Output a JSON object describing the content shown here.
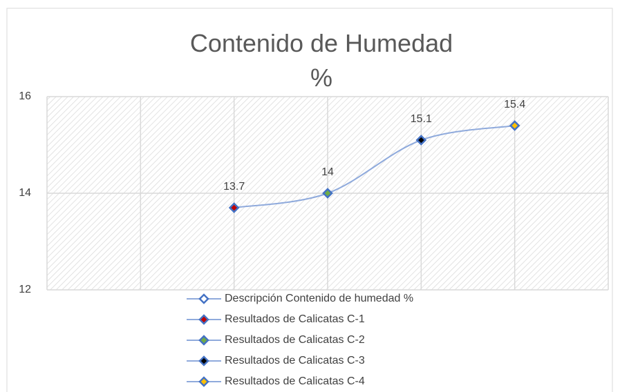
{
  "chart_data": {
    "type": "scatter",
    "title": "Contenido de Humedad %",
    "xlim": [
      0,
      6
    ],
    "xticks": [
      0,
      1,
      2,
      3,
      4,
      5,
      6
    ],
    "ylim": [
      12,
      16
    ],
    "yticks": [
      12,
      14,
      16
    ],
    "grid": true,
    "legend": "bottom",
    "series": [
      {
        "name": "Descripción Contenido de humedad %",
        "color": "#ffffff",
        "line_color": "#8faadc",
        "x": [
          2,
          3,
          4,
          5
        ],
        "values": [
          13.7,
          14,
          15.1,
          15.4
        ]
      },
      {
        "name": "Resultados de Calicatas C-1",
        "color": "#c00000",
        "x": [
          2
        ],
        "values": [
          13.7
        ]
      },
      {
        "name": "Resultados de Calicatas C-2",
        "color": "#70ad47",
        "x": [
          3
        ],
        "values": [
          14
        ]
      },
      {
        "name": "Resultados de Calicatas C-3",
        "color": "#000000",
        "x": [
          4
        ],
        "values": [
          15.1
        ]
      },
      {
        "name": "Resultados de Calicatas C-4",
        "color": "#ffc000",
        "x": [
          5
        ],
        "values": [
          15.4
        ]
      }
    ]
  }
}
